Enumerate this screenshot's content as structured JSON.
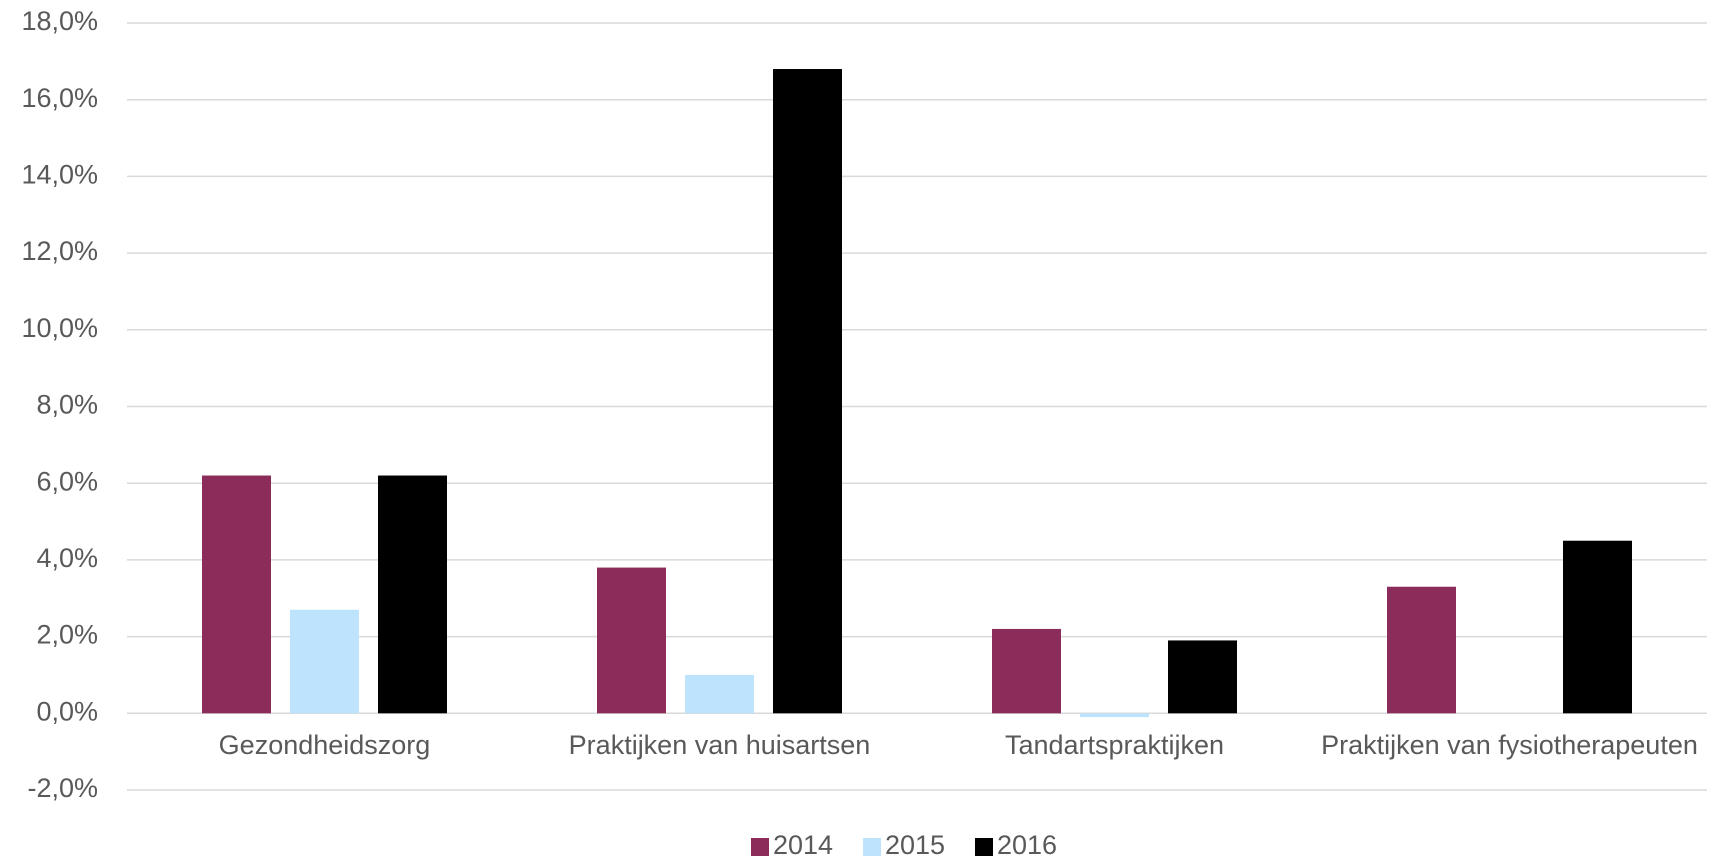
{
  "chart_data": {
    "type": "bar",
    "categories": [
      "Gezondheidszorg",
      "Praktijken van huisartsen",
      "Tandartspraktijken",
      "Praktijken van fysiotherapeuten"
    ],
    "series": [
      {
        "name": "2014",
        "color": "#8b2c5a",
        "values": [
          6.2,
          3.8,
          2.2,
          3.3
        ]
      },
      {
        "name": "2015",
        "color": "#bde3fd",
        "values": [
          2.7,
          1.0,
          -0.1,
          null
        ]
      },
      {
        "name": "2016",
        "color": "#000000",
        "values": [
          6.2,
          16.8,
          1.9,
          4.5
        ]
      }
    ],
    "ylim": [
      -2,
      18
    ],
    "yticks": [
      {
        "value": -2,
        "label": "-2,0%"
      },
      {
        "value": 0,
        "label": "0,0%"
      },
      {
        "value": 2,
        "label": "2,0%"
      },
      {
        "value": 4,
        "label": "4,0%"
      },
      {
        "value": 6,
        "label": "6,0%"
      },
      {
        "value": 8,
        "label": "8,0%"
      },
      {
        "value": 10,
        "label": "10,0%"
      },
      {
        "value": 12,
        "label": "12,0%"
      },
      {
        "value": 14,
        "label": "14,0%"
      },
      {
        "value": 16,
        "label": "16,0%"
      },
      {
        "value": 18,
        "label": "18,0%"
      }
    ],
    "grid": true,
    "legend": "bottom"
  }
}
